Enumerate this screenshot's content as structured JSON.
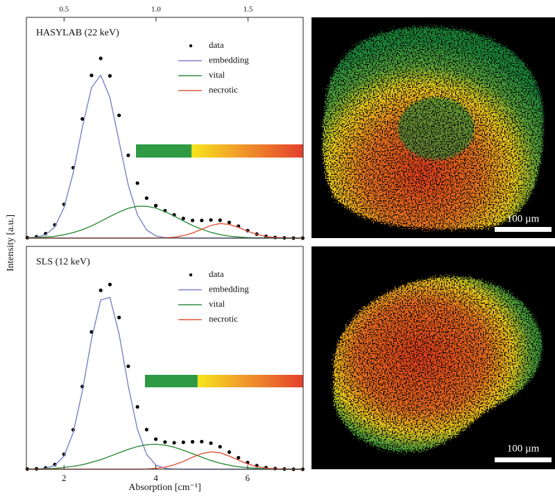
{
  "chart_data": [
    {
      "type": "line",
      "annotation": "HASYLAB (22 keV)",
      "ylabel": "Intensity [a.u.]",
      "legend": "top-right",
      "xlim": [
        1.18,
        7.21
      ],
      "x2lim": [
        0.295,
        1.8
      ],
      "x2ticks": [
        0.5,
        {
          "value": 1,
          "label": "1.0"
        },
        1.5
      ],
      "ylim": [
        0,
        1
      ],
      "x": [
        1.2,
        1.4,
        1.6,
        1.8,
        2,
        2.2,
        2.4,
        2.6,
        2.8,
        3,
        3.2,
        3.4,
        3.6,
        3.8,
        4,
        4.2,
        4.4,
        4.6,
        4.8,
        5,
        5.2,
        5.4,
        5.6,
        5.8,
        6,
        6.2,
        6.4,
        6.6,
        6.8,
        7,
        7.2
      ],
      "series": [
        {
          "name": "data",
          "color": "#000000",
          "mode": "markers",
          "values": [
            0.002,
            0.006,
            0.02,
            0.06,
            0.153,
            0.319,
            0.54,
            0.737,
            0.814,
            0.735,
            0.556,
            0.375,
            0.249,
            0.181,
            0.147,
            0.124,
            0.105,
            0.089,
            0.08,
            0.08,
            0.082,
            0.081,
            0.071,
            0.054,
            0.034,
            0.018,
            0.008,
            0.003,
            0.001,
            0,
            0
          ]
        },
        {
          "name": "embedding",
          "color": "#7b7fc8",
          "mode": "line",
          "values": [
            0.001,
            0.004,
            0.015,
            0.051,
            0.138,
            0.295,
            0.502,
            0.682,
            0.738,
            0.637,
            0.438,
            0.24,
            0.105,
            0.037,
            0.01,
            0.002,
            0.001,
            0,
            0,
            0,
            0,
            0,
            0,
            0,
            0,
            0,
            0,
            0,
            0,
            0,
            0
          ]
        },
        {
          "name": "vital",
          "color": "#2e8b3a",
          "mode": "line",
          "values": [
            0.001,
            0.002,
            0.005,
            0.008,
            0.015,
            0.025,
            0.038,
            0.055,
            0.076,
            0.098,
            0.118,
            0.135,
            0.144,
            0.144,
            0.136,
            0.12,
            0.1,
            0.078,
            0.057,
            0.04,
            0.026,
            0.016,
            0.009,
            0.005,
            0.002,
            0.001,
            0.001,
            0,
            0,
            0,
            0
          ]
        },
        {
          "name": "necrotic",
          "color": "#e0533a",
          "mode": "line",
          "values": [
            0,
            0,
            0,
            0,
            0,
            0,
            0,
            0,
            0,
            0,
            0,
            0,
            0,
            0,
            0,
            0.001,
            0.004,
            0.011,
            0.023,
            0.04,
            0.057,
            0.066,
            0.062,
            0.049,
            0.031,
            0.017,
            0.007,
            0.003,
            0.001,
            0,
            0
          ]
        }
      ]
    },
    {
      "type": "line",
      "annotation": "SLS (12 keV)",
      "xlabel": "Absorption [cm⁻¹]",
      "legend": "top-right",
      "xlim": [
        1.18,
        7.21
      ],
      "xticks": [
        2,
        4,
        6
      ],
      "ylim": [
        0,
        1
      ],
      "x": [
        1.2,
        1.4,
        1.6,
        1.8,
        2,
        2.2,
        2.4,
        2.6,
        2.8,
        3,
        3.2,
        3.4,
        3.6,
        3.8,
        4,
        4.2,
        4.4,
        4.6,
        4.8,
        5,
        5.2,
        5.4,
        5.6,
        5.8,
        6,
        6.2,
        6.4,
        6.6,
        6.8,
        7,
        7.2
      ],
      "series": [
        {
          "name": "data",
          "color": "#000000",
          "mode": "markers",
          "values": [
            0.001,
            0.002,
            0.006,
            0.021,
            0.067,
            0.177,
            0.371,
            0.616,
            0.803,
            0.829,
            0.681,
            0.462,
            0.28,
            0.178,
            0.135,
            0.122,
            0.119,
            0.121,
            0.123,
            0.124,
            0.117,
            0.101,
            0.077,
            0.052,
            0.03,
            0.016,
            0.007,
            0.003,
            0.001,
            0,
            0
          ]
        },
        {
          "name": "embedding",
          "color": "#7b7fc8",
          "mode": "line",
          "values": [
            0,
            0.001,
            0.004,
            0.017,
            0.059,
            0.164,
            0.351,
            0.585,
            0.76,
            0.771,
            0.607,
            0.373,
            0.178,
            0.067,
            0.019,
            0.004,
            0.001,
            0,
            0,
            0,
            0,
            0,
            0,
            0,
            0,
            0,
            0,
            0,
            0,
            0,
            0
          ]
        },
        {
          "name": "vital",
          "color": "#2e8b3a",
          "mode": "line",
          "values": [
            0.001,
            0.001,
            0.002,
            0.004,
            0.008,
            0.013,
            0.02,
            0.031,
            0.043,
            0.058,
            0.074,
            0.089,
            0.102,
            0.11,
            0.112,
            0.108,
            0.099,
            0.085,
            0.07,
            0.054,
            0.039,
            0.027,
            0.018,
            0.011,
            0.007,
            0.004,
            0.002,
            0.001,
            0,
            0,
            0
          ]
        },
        {
          "name": "necrotic",
          "color": "#e0533a",
          "mode": "line",
          "values": [
            0,
            0,
            0,
            0,
            0,
            0,
            0,
            0,
            0,
            0,
            0,
            0,
            0,
            0.001,
            0.004,
            0.009,
            0.02,
            0.035,
            0.054,
            0.07,
            0.078,
            0.074,
            0.059,
            0.041,
            0.024,
            0.012,
            0.005,
            0.002,
            0.001,
            0,
            0
          ]
        }
      ]
    }
  ],
  "images": [
    {
      "scale_label": "100 µm"
    },
    {
      "scale_label": "100 µm"
    }
  ]
}
